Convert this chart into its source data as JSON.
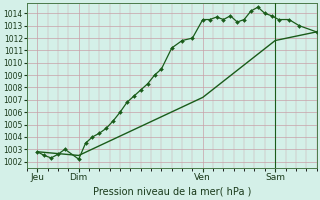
{
  "title": "Pression niveau de la mer( hPa )",
  "bg_color": "#d4f0e8",
  "grid_color": "#c8a0a8",
  "line_color": "#1a5c1a",
  "ylim": [
    1001.5,
    1014.8
  ],
  "yticks": [
    1002,
    1003,
    1004,
    1005,
    1006,
    1007,
    1008,
    1009,
    1010,
    1011,
    1012,
    1013,
    1014
  ],
  "xlim": [
    0,
    84
  ],
  "xtick_positions": [
    3,
    15,
    51,
    72
  ],
  "xtick_labels": [
    "Jeu",
    "Dim",
    "Ven",
    "Sam"
  ],
  "vline_x": 72,
  "line1_x": [
    3,
    5,
    7,
    9,
    11,
    15,
    17,
    19,
    21,
    23,
    25,
    27,
    29,
    31,
    33,
    35,
    37,
    39,
    42,
    45,
    48,
    51,
    53,
    55,
    57,
    59,
    61,
    63,
    65,
    67,
    69,
    71,
    73,
    76,
    79,
    84
  ],
  "line1_y": [
    1002.8,
    1002.5,
    1002.3,
    1002.6,
    1003.0,
    1002.2,
    1003.5,
    1004.0,
    1004.3,
    1004.7,
    1005.3,
    1006.0,
    1006.8,
    1007.3,
    1007.8,
    1008.3,
    1009.0,
    1009.5,
    1011.2,
    1011.8,
    1012.0,
    1013.5,
    1013.5,
    1013.7,
    1013.5,
    1013.8,
    1013.3,
    1013.5,
    1014.2,
    1014.5,
    1014.0,
    1013.8,
    1013.5,
    1013.5,
    1013.0,
    1012.5
  ],
  "line2_x": [
    3,
    15,
    51,
    72,
    84
  ],
  "line2_y": [
    1002.8,
    1002.5,
    1007.2,
    1011.8,
    1012.5
  ]
}
